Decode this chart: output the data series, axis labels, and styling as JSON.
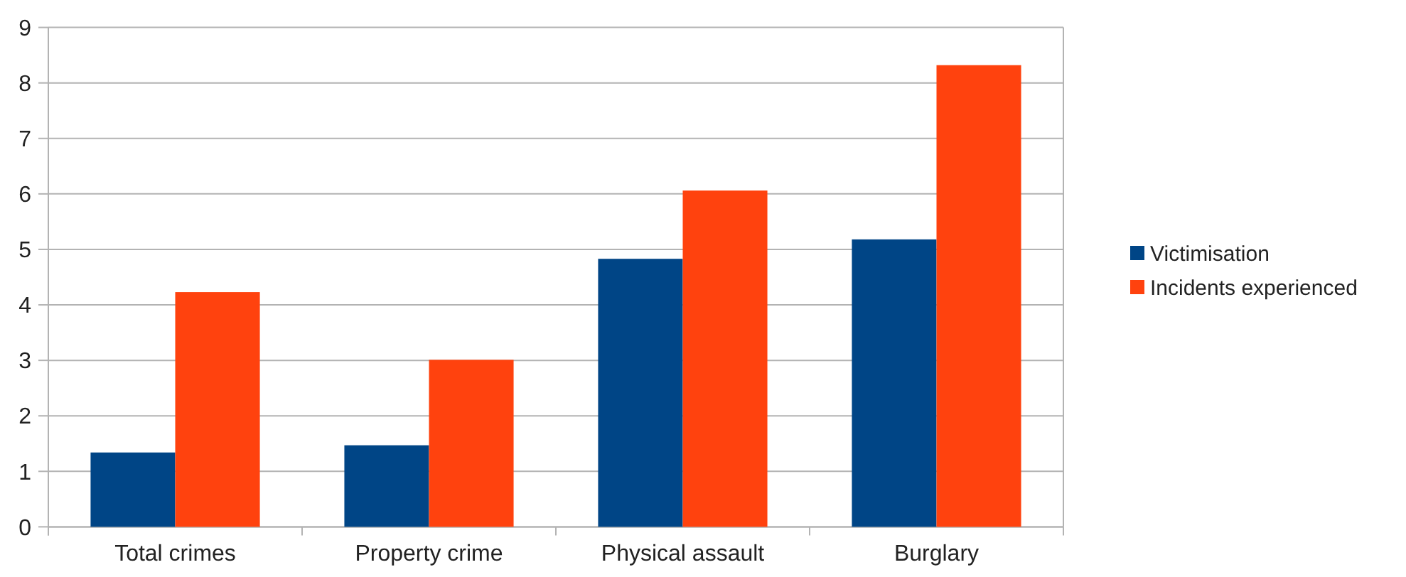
{
  "chart_data": {
    "type": "bar",
    "categories": [
      "Total crimes",
      "Property crime",
      "Physical assault",
      "Burglary"
    ],
    "series": [
      {
        "name": "Victimisation",
        "color": "#004586",
        "values": [
          1.34,
          1.47,
          4.83,
          5.18
        ]
      },
      {
        "name": "Incidents experienced",
        "color": "#ff420e",
        "values": [
          4.23,
          3.01,
          6.06,
          8.32
        ]
      }
    ],
    "ylim": [
      0,
      9
    ],
    "yticks": [
      0,
      1,
      2,
      3,
      4,
      5,
      6,
      7,
      8,
      9
    ],
    "grid": "y",
    "legend": "right"
  }
}
